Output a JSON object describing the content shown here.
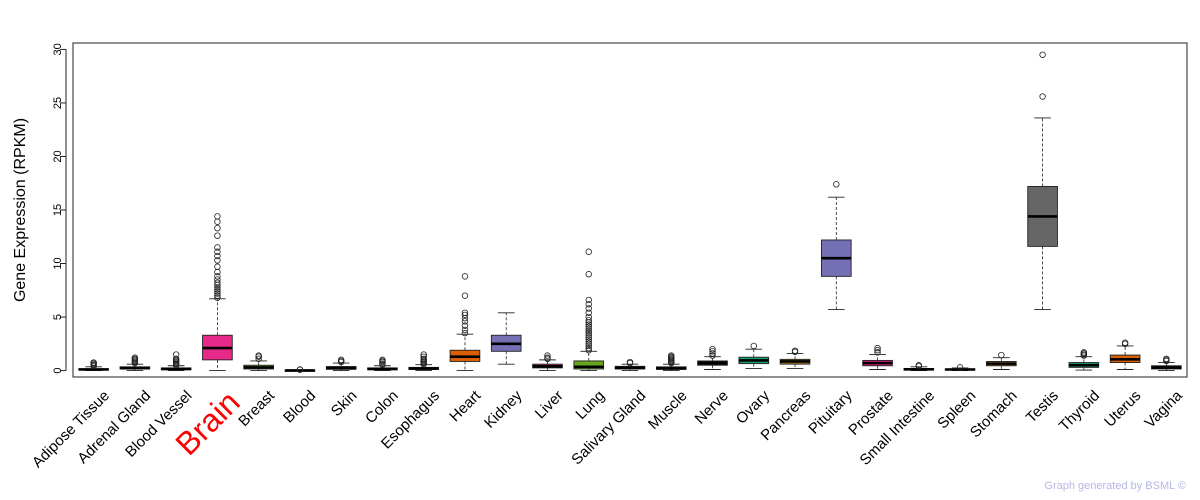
{
  "chart_data": {
    "type": "box",
    "ylabel": "Gene Expression (RPKM)",
    "ylim": [
      -0.6,
      30.6
    ],
    "yticks": [
      0,
      5,
      10,
      15,
      20,
      25,
      30
    ],
    "highlighted_category": "Brain",
    "highlight_color": "#ff0000",
    "categories": [
      {
        "name": "Adipose Tissue",
        "color": "#1a1a1a",
        "min": 0.0,
        "q1": 0.05,
        "median": 0.1,
        "q3": 0.18,
        "max": 0.35,
        "outliers": [
          0.4,
          0.5,
          0.6,
          0.7,
          0.75
        ]
      },
      {
        "name": "Adrenal Gland",
        "color": "#1a1a1a",
        "min": 0.0,
        "q1": 0.15,
        "median": 0.22,
        "q3": 0.35,
        "max": 0.6,
        "outliers": [
          0.7,
          0.8,
          0.9,
          1.0,
          1.1,
          1.2
        ]
      },
      {
        "name": "Blood Vessel",
        "color": "#1a1a1a",
        "min": 0.0,
        "q1": 0.08,
        "median": 0.15,
        "q3": 0.25,
        "max": 0.45,
        "outliers": [
          0.5,
          0.6,
          0.7,
          0.8,
          0.9,
          1.0,
          1.1,
          1.5
        ]
      },
      {
        "name": "Brain",
        "color": "#e7298a",
        "min": 0.0,
        "q1": 1.0,
        "median": 2.1,
        "q3": 3.3,
        "max": 6.7,
        "outliers": [
          6.8,
          7.0,
          7.2,
          7.4,
          7.6,
          7.8,
          8.0,
          8.2,
          8.5,
          8.8,
          9.2,
          9.7,
          10.3,
          10.7,
          11.1,
          11.5,
          12.6,
          13.3,
          13.9,
          14.4
        ]
      },
      {
        "name": "Breast",
        "color": "#66a61e",
        "min": 0.0,
        "q1": 0.15,
        "median": 0.3,
        "q3": 0.5,
        "max": 0.9,
        "outliers": [
          1.1,
          1.3,
          1.4
        ]
      },
      {
        "name": "Blood",
        "color": "#1a1a1a",
        "min": 0.0,
        "q1": 0.01,
        "median": 0.02,
        "q3": 0.03,
        "max": 0.05,
        "outliers": [
          0.08,
          0.1
        ]
      },
      {
        "name": "Skin",
        "color": "#1a1a1a",
        "min": 0.0,
        "q1": 0.12,
        "median": 0.22,
        "q3": 0.38,
        "max": 0.7,
        "outliers": [
          0.8,
          0.9,
          1.0
        ]
      },
      {
        "name": "Colon",
        "color": "#1a1a1a",
        "min": 0.0,
        "q1": 0.08,
        "median": 0.15,
        "q3": 0.25,
        "max": 0.45,
        "outliers": [
          0.55,
          0.65,
          0.8,
          0.9,
          1.0
        ]
      },
      {
        "name": "Esophagus",
        "color": "#1a1a1a",
        "min": 0.0,
        "q1": 0.1,
        "median": 0.2,
        "q3": 0.3,
        "max": 0.55,
        "outliers": [
          0.6,
          0.7,
          0.8,
          0.9,
          1.0,
          1.1,
          1.3,
          1.5
        ]
      },
      {
        "name": "Heart",
        "color": "#d95f02",
        "min": 0.0,
        "q1": 0.85,
        "median": 1.3,
        "q3": 1.9,
        "max": 3.4,
        "outliers": [
          3.5,
          3.8,
          4.2,
          4.6,
          4.9,
          5.2,
          5.4,
          7.0,
          8.8
        ]
      },
      {
        "name": "Kidney",
        "color": "#7570b3",
        "min": 0.6,
        "q1": 1.8,
        "median": 2.5,
        "q3": 3.3,
        "max": 5.4,
        "outliers": []
      },
      {
        "name": "Liver",
        "color": "#e7298a",
        "min": 0.0,
        "q1": 0.25,
        "median": 0.4,
        "q3": 0.6,
        "max": 1.0,
        "outliers": [
          1.1,
          1.2,
          1.4
        ]
      },
      {
        "name": "Lung",
        "color": "#66a61e",
        "min": 0.0,
        "q1": 0.15,
        "median": 0.35,
        "q3": 0.9,
        "max": 1.8,
        "outliers": [
          1.9,
          2.1,
          2.3,
          2.5,
          2.7,
          2.9,
          3.1,
          3.3,
          3.5,
          3.7,
          3.9,
          4.1,
          4.3,
          4.5,
          4.7,
          5.0,
          5.4,
          5.8,
          6.2,
          6.6,
          9.0,
          11.1
        ]
      },
      {
        "name": "Salivary Gland",
        "color": "#1a1a1a",
        "min": 0.0,
        "q1": 0.15,
        "median": 0.25,
        "q3": 0.4,
        "max": 0.6,
        "outliers": [
          0.7,
          0.8
        ]
      },
      {
        "name": "Muscle",
        "color": "#1a1a1a",
        "min": 0.0,
        "q1": 0.12,
        "median": 0.2,
        "q3": 0.35,
        "max": 0.6,
        "outliers": [
          0.7,
          0.8,
          0.9,
          1.0,
          1.1,
          1.2,
          1.3,
          1.4
        ]
      },
      {
        "name": "Nerve",
        "color": "#1a1a1a",
        "min": 0.1,
        "q1": 0.5,
        "median": 0.7,
        "q3": 0.9,
        "max": 1.3,
        "outliers": [
          1.4,
          1.6,
          1.8,
          2.0
        ]
      },
      {
        "name": "Ovary",
        "color": "#1b9e77",
        "min": 0.2,
        "q1": 0.65,
        "median": 0.95,
        "q3": 1.25,
        "max": 2.0,
        "outliers": [
          2.3
        ]
      },
      {
        "name": "Pancreas",
        "color": "#a6761d",
        "min": 0.2,
        "q1": 0.6,
        "median": 0.85,
        "q3": 1.05,
        "max": 1.6,
        "outliers": [
          1.75,
          1.85
        ]
      },
      {
        "name": "Pituitary",
        "color": "#7570b3",
        "min": 5.7,
        "q1": 8.8,
        "median": 10.5,
        "q3": 12.2,
        "max": 16.2,
        "outliers": [
          17.4
        ]
      },
      {
        "name": "Prostate",
        "color": "#e7298a",
        "min": 0.1,
        "q1": 0.45,
        "median": 0.7,
        "q3": 0.95,
        "max": 1.5,
        "outliers": [
          1.7,
          1.9,
          2.1
        ]
      },
      {
        "name": "Small Intestine",
        "color": "#1a1a1a",
        "min": 0.0,
        "q1": 0.05,
        "median": 0.12,
        "q3": 0.2,
        "max": 0.35,
        "outliers": [
          0.4,
          0.5
        ]
      },
      {
        "name": "Spleen",
        "color": "#1a1a1a",
        "min": 0.0,
        "q1": 0.05,
        "median": 0.1,
        "q3": 0.16,
        "max": 0.25,
        "outliers": [
          0.3
        ]
      },
      {
        "name": "Stomach",
        "color": "#a6761d",
        "min": 0.1,
        "q1": 0.45,
        "median": 0.65,
        "q3": 0.85,
        "max": 1.2,
        "outliers": [
          1.45
        ]
      },
      {
        "name": "Testis",
        "color": "#666666",
        "min": 5.7,
        "q1": 11.6,
        "median": 14.4,
        "q3": 17.2,
        "max": 23.6,
        "outliers": [
          25.6,
          29.5
        ]
      },
      {
        "name": "Thyroid",
        "color": "#1b9e77",
        "min": 0.05,
        "q1": 0.3,
        "median": 0.5,
        "q3": 0.75,
        "max": 1.3,
        "outliers": [
          1.4,
          1.5,
          1.6,
          1.7
        ]
      },
      {
        "name": "Uterus",
        "color": "#d95f02",
        "min": 0.1,
        "q1": 0.75,
        "median": 1.05,
        "q3": 1.45,
        "max": 2.3,
        "outliers": [
          2.5,
          2.6
        ]
      },
      {
        "name": "Vagina",
        "color": "#1a1a1a",
        "min": 0.0,
        "q1": 0.15,
        "median": 0.28,
        "q3": 0.45,
        "max": 0.75,
        "outliers": [
          0.9,
          1.0,
          1.1
        ]
      }
    ]
  },
  "credit": "Graph generated by BSML ©"
}
